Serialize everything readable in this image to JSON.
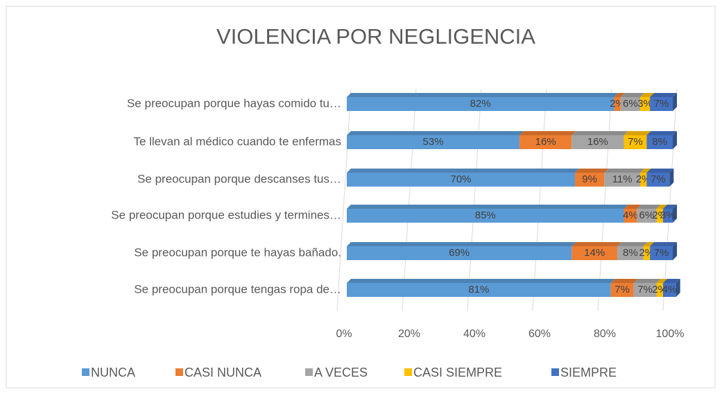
{
  "chart_data": {
    "type": "bar",
    "orientation": "horizontal",
    "stacked": true,
    "title": "VIOLENCIA POR NEGLIGENCIA",
    "categories": [
      "Se preocupan porque hayas comido tu…",
      "Te llevan al médico cuando te enfermas",
      "Se preocupan porque descanses tus…",
      "Se preocupan porque estudies y termines…",
      "Se preocupan porque te hayas bañado.",
      "Se preocupan porque tengas ropa de…"
    ],
    "series": [
      {
        "name": "NUNCA",
        "color": "#5b9bd5",
        "values": [
          82,
          53,
          70,
          85,
          69,
          81
        ],
        "value_labels": [
          "82%",
          "53%",
          "70%",
          "85%",
          "69%",
          "81%"
        ]
      },
      {
        "name": "CASI NUNCA",
        "color": "#ed7d31",
        "values": [
          2,
          16,
          9,
          4,
          14,
          7
        ],
        "value_labels": [
          "2%",
          "16%",
          "9%",
          "4%",
          "14%",
          "7%"
        ]
      },
      {
        "name": "A VECES",
        "color": "#a5a5a5",
        "values": [
          6,
          16,
          11,
          6,
          8,
          7
        ],
        "value_labels": [
          "6%",
          "16%",
          "11%",
          "6%",
          "8%",
          "7%"
        ]
      },
      {
        "name": "CASI SIEMPRE",
        "color": "#ffc000",
        "values": [
          3,
          7,
          2,
          2,
          2,
          2
        ],
        "value_labels": [
          "3%",
          "7%",
          "2%",
          "2%",
          "2%",
          "2%"
        ]
      },
      {
        "name": "SIEMPRE",
        "color": "#4472c4",
        "values": [
          7,
          8,
          7,
          3,
          7,
          4
        ],
        "value_labels": [
          "7%",
          "8%",
          "7%",
          "3%",
          "7%",
          "4%"
        ]
      }
    ],
    "xlim": [
      0,
      100
    ],
    "xticks": [
      {
        "value": 0,
        "label": "0%"
      },
      {
        "value": 20,
        "label": "20%"
      },
      {
        "value": 40,
        "label": "40%"
      },
      {
        "value": 60,
        "label": "60%"
      },
      {
        "value": 80,
        "label": "80%"
      },
      {
        "value": 100,
        "label": "100%"
      }
    ],
    "grid": true,
    "legend": "bottom"
  }
}
